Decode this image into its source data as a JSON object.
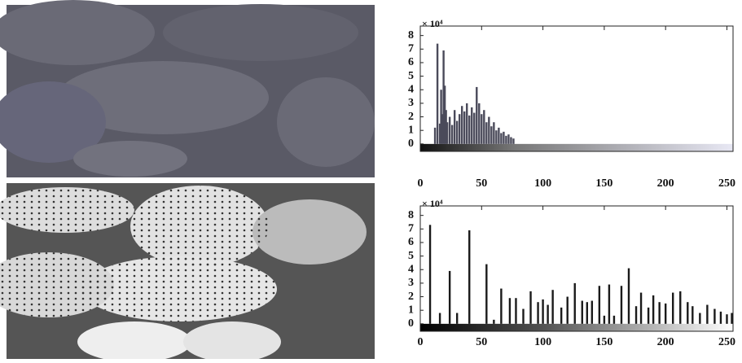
{
  "chart_data": [
    {
      "type": "bar",
      "y_label": "× 10⁴",
      "color": "#4a4a5a",
      "x": [
        12,
        14,
        16,
        17,
        18,
        19,
        20,
        21,
        22,
        24,
        26,
        28,
        30,
        32,
        34,
        36,
        38,
        40,
        42,
        44,
        46,
        48,
        50,
        52,
        54,
        56,
        58,
        60,
        62,
        64,
        66,
        68,
        70,
        72,
        74,
        76
      ],
      "values": [
        1.2,
        7.4,
        1.5,
        4.0,
        2.2,
        6.9,
        4.3,
        2.5,
        1.6,
        2.0,
        1.4,
        2.5,
        1.7,
        2.2,
        2.8,
        2.4,
        3.0,
        2.1,
        2.7,
        2.3,
        4.2,
        3.0,
        2.2,
        2.5,
        1.6,
        2.0,
        1.3,
        1.6,
        1.0,
        1.2,
        0.8,
        0.9,
        0.6,
        0.7,
        0.5,
        0.4
      ],
      "xlim": [
        0,
        255
      ],
      "ylim": [
        -0.55,
        8.7
      ],
      "xticks": [
        0,
        50,
        100,
        150,
        200,
        250
      ],
      "yticks": [
        0,
        1,
        2,
        3,
        4,
        5,
        6,
        7,
        8
      ]
    },
    {
      "type": "bar",
      "y_label": "× 10⁴",
      "color": "#1a1a1a",
      "x": [
        8,
        16,
        24,
        30,
        40,
        54,
        60,
        66,
        73,
        78,
        84,
        90,
        96,
        100,
        104,
        108,
        115,
        120,
        126,
        132,
        136,
        140,
        146,
        150,
        154,
        158,
        164,
        170,
        176,
        180,
        186,
        190,
        195,
        200,
        206,
        212,
        218,
        222,
        228,
        234,
        240,
        245,
        250,
        254
      ],
      "values": [
        7.3,
        0.8,
        3.9,
        0.8,
        6.9,
        4.4,
        0.3,
        2.6,
        1.9,
        1.9,
        1.1,
        2.4,
        1.6,
        1.8,
        1.4,
        2.5,
        1.2,
        2.0,
        3.0,
        1.7,
        1.6,
        1.7,
        2.8,
        0.6,
        2.9,
        0.6,
        2.8,
        4.1,
        1.3,
        2.3,
        1.2,
        2.1,
        1.6,
        1.5,
        2.3,
        2.4,
        1.6,
        1.3,
        0.8,
        1.4,
        1.1,
        0.9,
        0.7,
        0.8
      ],
      "xlim": [
        0,
        255
      ],
      "ylim": [
        -0.55,
        8.7
      ],
      "xticks": [
        0,
        50,
        100,
        150,
        200,
        250
      ],
      "yticks": [
        0,
        1,
        2,
        3,
        4,
        5,
        6,
        7,
        8
      ]
    }
  ]
}
